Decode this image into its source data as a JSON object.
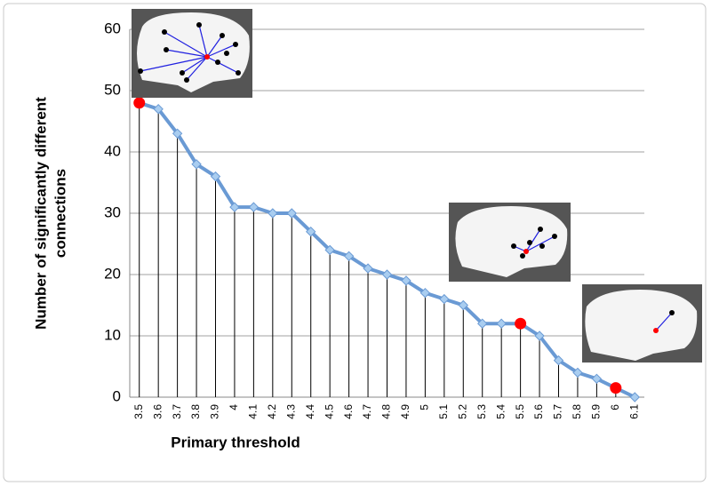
{
  "chart_data": {
    "type": "line",
    "ylabel": [
      "Number of significantly different",
      "connections"
    ],
    "xlabel": "Primary threshold",
    "categories": [
      "3.5",
      "3.6",
      "3.7",
      "3.8",
      "3.9",
      "4",
      "4.1",
      "4.2",
      "4.3",
      "4.4",
      "4.5",
      "4.6",
      "4.7",
      "4.8",
      "4.9",
      "5",
      "5.1",
      "5.2",
      "5.3",
      "5.4",
      "5.5",
      "5.6",
      "5.7",
      "5.8",
      "5.9",
      "6",
      "6.1"
    ],
    "values": [
      48,
      47,
      43,
      38,
      36,
      31,
      31,
      30,
      30,
      27,
      24,
      23,
      21,
      20,
      19,
      17,
      16,
      15,
      12,
      12,
      12,
      10,
      6,
      4,
      3,
      1.5,
      0
    ],
    "color": "#6a9ad4",
    "marker_color": "#a9cdf0",
    "drop_lines": true,
    "highlight": {
      "color": "#ff0000",
      "indices": [
        0,
        20,
        25
      ]
    },
    "ylim": [
      0,
      60
    ],
    "yticks": [
      0,
      10,
      20,
      30,
      40,
      50,
      60
    ],
    "grid": true
  }
}
